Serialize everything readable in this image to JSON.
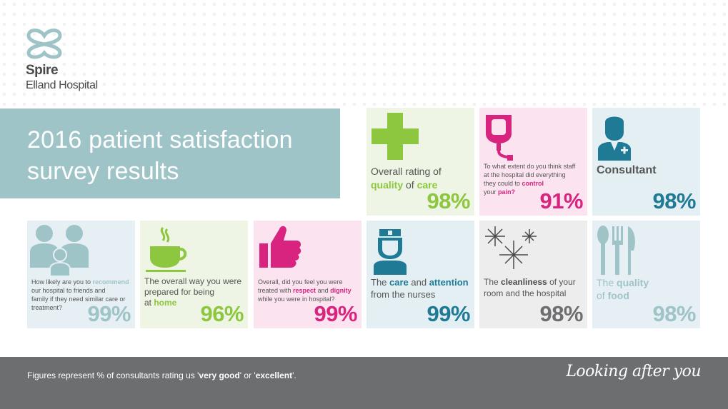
{
  "logo": {
    "name": "Spire",
    "hospital": "Elland Hospital"
  },
  "title": {
    "line1": "2016 patient satisfaction",
    "line2": "survey results"
  },
  "cards": {
    "quality": {
      "pre": "Overall rating of",
      "hl": "quality",
      "mid": " of ",
      "hl2": "care",
      "pct": "98%",
      "icon": "plus-cross-icon"
    },
    "pain": {
      "l1": "To what extent do you think staff",
      "l2": "at the hospital did everything",
      "l3pre": "they could to ",
      "l3hl": "control",
      "l4pre": "your ",
      "l4hl": "pain?",
      "pct": "91%",
      "icon": "iv-drip-icon"
    },
    "consultant": {
      "label": "Consultant",
      "pct": "98%",
      "icon": "doctor-icon"
    },
    "recommend": {
      "l1pre": "How likely are you to ",
      "l1hl": "recommend",
      "l2": "our hospital to friends and",
      "l3": "family if they need similar care or",
      "l4": "treatment?",
      "pct": "99%",
      "icon": "family-icon"
    },
    "home": {
      "l1": "The overall way you were",
      "l2": "prepared for being",
      "l3pre": "at ",
      "l3hl": "home",
      "pct": "96%",
      "icon": "coffee-cup-icon"
    },
    "respect": {
      "l1": "Overall, did you feel you were",
      "l2pre": "treated with ",
      "l2hl": "respect",
      "l2mid": " and ",
      "l2hl2": "dignity",
      "l3": "while you were in hospital?",
      "pct": "99%",
      "icon": "thumbs-up-icon"
    },
    "nurses": {
      "l1pre": "The ",
      "l1hl": "care",
      "l1mid": " and ",
      "l1hl2": "attention",
      "l2": "from the nurses",
      "pct": "99%",
      "icon": "nurse-icon"
    },
    "cleanliness": {
      "l1pre": "The ",
      "l1hl": "cleanliness",
      "l1post": " of your",
      "l2": "room and the hospital",
      "pct": "98%",
      "icon": "sparkle-icon"
    },
    "food": {
      "l1pre": "The ",
      "l1hl": "quality",
      "l2pre": "of ",
      "l2hl": "food",
      "pct": "98%",
      "icon": "cutlery-icon"
    }
  },
  "footer": {
    "note_pre": "Figures represent % of consultants rating us '",
    "note_hl1": "very good",
    "note_mid": "' or '",
    "note_hl2": "excellent",
    "note_post": "'.",
    "tagline": "Looking after you"
  },
  "colors": {
    "green": "#8dc63f",
    "pink": "#d8237f",
    "teal": "#1f7a96",
    "light_teal": "#9fc4c8",
    "grey": "#6d6e70"
  }
}
